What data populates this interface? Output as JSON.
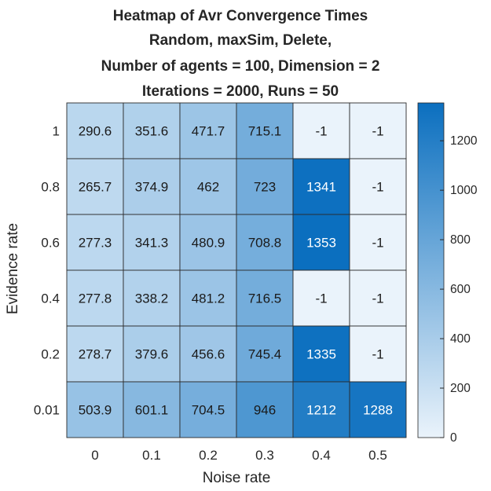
{
  "chart_data": {
    "type": "heatmap",
    "title_lines": [
      "Heatmap of Avr Convergence Times",
      "Random, maxSim, Delete,",
      "Number of agents = 100, Dimension = 2",
      "Iterations = 2000, Runs = 50"
    ],
    "xlabel": "Noise rate",
    "ylabel": "Evidence rate",
    "x_categories": [
      "0",
      "0.1",
      "0.2",
      "0.3",
      "0.4",
      "0.5"
    ],
    "y_categories": [
      "1",
      "0.8",
      "0.6",
      "0.4",
      "0.2",
      "0.01"
    ],
    "values": [
      [
        290.6,
        351.6,
        471.7,
        715.1,
        -1,
        -1
      ],
      [
        265.7,
        374.9,
        462,
        723,
        1341,
        -1
      ],
      [
        277.3,
        341.3,
        480.9,
        708.8,
        1353,
        -1
      ],
      [
        277.8,
        338.2,
        481.2,
        716.5,
        -1,
        -1
      ],
      [
        278.7,
        379.6,
        456.6,
        745.4,
        1335,
        -1
      ],
      [
        503.9,
        601.1,
        704.5,
        946,
        1212,
        1288
      ]
    ],
    "value_labels": [
      [
        "290.6",
        "351.6",
        "471.7",
        "715.1",
        "-1",
        "-1"
      ],
      [
        "265.7",
        "374.9",
        "462",
        "723",
        "1341",
        "-1"
      ],
      [
        "277.3",
        "341.3",
        "480.9",
        "708.8",
        "1353",
        "-1"
      ],
      [
        "277.8",
        "338.2",
        "481.2",
        "716.5",
        "-1",
        "-1"
      ],
      [
        "278.7",
        "379.6",
        "456.6",
        "745.4",
        "1335",
        "-1"
      ],
      [
        "503.9",
        "601.1",
        "704.5",
        "946",
        "1212",
        "1288"
      ]
    ],
    "colorbar": {
      "range": [
        0,
        1353
      ],
      "ticks": [
        0,
        200,
        400,
        600,
        800,
        1000,
        1200
      ],
      "tick_labels": [
        "0",
        "200",
        "400",
        "600",
        "800",
        "1000",
        "1200"
      ],
      "color_low": "#eaf3fb",
      "color_high": "#0b6fbf"
    },
    "grid": true
  }
}
